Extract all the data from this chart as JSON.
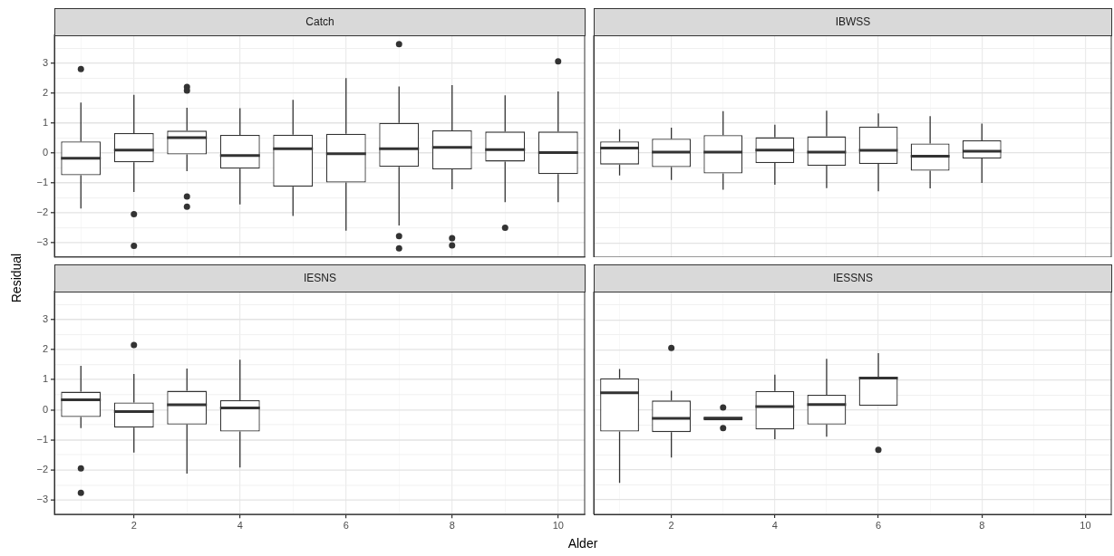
{
  "chart_data": [
    {
      "type": "box",
      "title": "Catch",
      "ylabel": "Residual",
      "categories": [
        null,
        "2",
        null,
        "4",
        null,
        "6",
        null,
        "8",
        null,
        "10"
      ],
      "color": "#333333",
      "ylim": [
        -3.48,
        3.94
      ],
      "yticks": [
        {
          "value": -2.5,
          "label": null
        },
        {
          "value": -1.5,
          "label": null
        },
        {
          "value": -0.5,
          "label": null
        },
        {
          "value": 0.5,
          "label": null
        },
        {
          "value": 1.5,
          "label": null
        },
        {
          "value": 2.5,
          "label": null
        },
        {
          "value": 3.5,
          "label": null
        },
        {
          "value": -3,
          "label": "−3"
        },
        {
          "value": -2,
          "label": "−2"
        },
        {
          "value": -1,
          "label": "−1"
        },
        0,
        1,
        2,
        3
      ],
      "grid": true,
      "tick_labels": "y",
      "boxes": [
        {
          "low": -1.86,
          "q1": -0.75,
          "median": -0.18,
          "q3": 0.38,
          "high": 1.68,
          "outliers": [
            2.8
          ]
        },
        {
          "low": -1.31,
          "q1": -0.32,
          "median": 0.09,
          "q3": 0.66,
          "high": 1.94,
          "outliers": [
            -2.05,
            -3.11
          ]
        },
        {
          "low": -0.61,
          "q1": -0.05,
          "median": 0.51,
          "q3": 0.74,
          "high": 1.51,
          "outliers": [
            2.2,
            2.08,
            -1.46,
            -1.8
          ]
        },
        {
          "low": -1.72,
          "q1": -0.53,
          "median": -0.09,
          "q3": 0.6,
          "high": 1.49
        },
        {
          "low": -2.11,
          "q1": -1.13,
          "median": 0.14,
          "q3": 0.61,
          "high": 1.77
        },
        {
          "low": -2.6,
          "q1": -0.99,
          "median": -0.03,
          "q3": 0.64,
          "high": 2.5
        },
        {
          "low": -2.43,
          "q1": -0.47,
          "median": 0.14,
          "q3": 1.0,
          "high": 2.22,
          "outliers": [
            3.63,
            -2.78,
            -3.19
          ]
        },
        {
          "low": -1.22,
          "q1": -0.55,
          "median": 0.18,
          "q3": 0.75,
          "high": 2.26,
          "outliers": [
            -2.85,
            -3.09
          ]
        },
        {
          "low": -1.65,
          "q1": -0.29,
          "median": 0.11,
          "q3": 0.71,
          "high": 1.92,
          "outliers": [
            -2.5
          ]
        },
        {
          "low": -1.65,
          "q1": -0.71,
          "median": 0.01,
          "q3": 0.71,
          "high": 2.05,
          "outliers": [
            3.06
          ]
        }
      ]
    },
    {
      "type": "box",
      "title": "IBWSS",
      "categories": [
        null,
        "2",
        null,
        "4",
        null,
        "6",
        null,
        "8",
        null,
        "10"
      ],
      "color": "#333333",
      "ylim": [
        -3.48,
        3.94
      ],
      "yticks": [
        {
          "value": -2.5,
          "label": null
        },
        {
          "value": -1.5,
          "label": null
        },
        {
          "value": -0.5,
          "label": null
        },
        {
          "value": 0.5,
          "label": null
        },
        {
          "value": 1.5,
          "label": null
        },
        {
          "value": 2.5,
          "label": null
        },
        {
          "value": 3.5,
          "label": null
        },
        -3,
        -2,
        -1,
        0,
        1,
        2,
        3
      ],
      "grid": true,
      "tick_labels": false,
      "boxes": [
        {
          "low": -0.75,
          "q1": -0.38,
          "median": 0.17,
          "q3": 0.39,
          "high": 0.8
        },
        {
          "low": -0.9,
          "q1": -0.47,
          "median": 0.03,
          "q3": 0.48,
          "high": 0.85
        },
        {
          "low": -1.22,
          "q1": -0.68,
          "median": 0.03,
          "q3": 0.6,
          "high": 1.4
        },
        {
          "low": -1.06,
          "q1": -0.33,
          "median": 0.1,
          "q3": 0.53,
          "high": 0.95
        },
        {
          "low": -1.17,
          "q1": -0.42,
          "median": 0.03,
          "q3": 0.56,
          "high": 1.42
        },
        {
          "low": -1.28,
          "q1": -0.36,
          "median": 0.09,
          "q3": 0.89,
          "high": 1.33
        },
        {
          "low": -1.18,
          "q1": -0.59,
          "median": -0.1,
          "q3": 0.32,
          "high": 1.24
        },
        {
          "low": -1.0,
          "q1": -0.18,
          "median": 0.06,
          "q3": 0.43,
          "high": 0.99
        },
        null,
        null
      ]
    },
    {
      "type": "box",
      "title": "IESNS",
      "xlabel": "Alder",
      "categories": [
        null,
        "2",
        null,
        "4",
        null,
        "6",
        null,
        "8",
        null,
        "10"
      ],
      "color": "#333333",
      "ylim": [
        -3.48,
        3.94
      ],
      "yticks": [
        {
          "value": -2.5,
          "label": null
        },
        {
          "value": -1.5,
          "label": null
        },
        {
          "value": -0.5,
          "label": null
        },
        {
          "value": 0.5,
          "label": null
        },
        {
          "value": 1.5,
          "label": null
        },
        {
          "value": 2.5,
          "label": null
        },
        {
          "value": 3.5,
          "label": null
        },
        {
          "value": -3,
          "label": "−3"
        },
        {
          "value": -2,
          "label": "−2"
        },
        {
          "value": -1,
          "label": "−1"
        },
        0,
        1,
        2,
        3
      ],
      "grid": true,
      "boxes": [
        {
          "low": -0.61,
          "q1": -0.24,
          "median": 0.33,
          "q3": 0.6,
          "high": 1.46,
          "outliers": [
            -1.95,
            -2.76
          ]
        },
        {
          "low": -1.42,
          "q1": -0.59,
          "median": -0.06,
          "q3": 0.24,
          "high": 1.19,
          "outliers": [
            2.15
          ]
        },
        {
          "low": -2.12,
          "q1": -0.49,
          "median": 0.17,
          "q3": 0.63,
          "high": 1.37
        },
        {
          "low": -1.92,
          "q1": -0.72,
          "median": 0.06,
          "q3": 0.32,
          "high": 1.66
        },
        null,
        null,
        null,
        null,
        null,
        null
      ]
    },
    {
      "type": "box",
      "title": "IESSNS",
      "categories": [
        null,
        "2",
        null,
        "4",
        null,
        "6",
        null,
        "8",
        null,
        "10"
      ],
      "color": "#333333",
      "ylim": [
        -3.48,
        3.94
      ],
      "yticks": [
        {
          "value": -2.5,
          "label": null
        },
        {
          "value": -1.5,
          "label": null
        },
        {
          "value": -0.5,
          "label": null
        },
        {
          "value": 0.5,
          "label": null
        },
        {
          "value": 1.5,
          "label": null
        },
        {
          "value": 2.5,
          "label": null
        },
        {
          "value": 3.5,
          "label": null
        },
        -3,
        -2,
        -1,
        0,
        1,
        2,
        3
      ],
      "grid": true,
      "tick_labels": "x",
      "boxes": [
        {
          "low": -2.43,
          "q1": -0.72,
          "median": 0.57,
          "q3": 1.05,
          "high": 1.36
        },
        {
          "low": -1.59,
          "q1": -0.74,
          "median": -0.28,
          "q3": 0.31,
          "high": 0.64,
          "outliers": [
            2.06
          ]
        },
        {
          "low": -0.35,
          "q1": -0.35,
          "median": -0.28,
          "q3": -0.23,
          "high": -0.23,
          "outliers": [
            0.08,
            -0.61
          ]
        },
        {
          "low": -0.98,
          "q1": -0.65,
          "median": 0.11,
          "q3": 0.63,
          "high": 1.17
        },
        {
          "low": -0.89,
          "q1": -0.49,
          "median": 0.18,
          "q3": 0.5,
          "high": 1.7
        },
        {
          "low": 0.14,
          "q1": 0.14,
          "median": 1.06,
          "q3": 1.1,
          "high": 1.89,
          "outliers": [
            -1.33
          ]
        },
        null,
        null,
        null,
        null
      ]
    }
  ]
}
